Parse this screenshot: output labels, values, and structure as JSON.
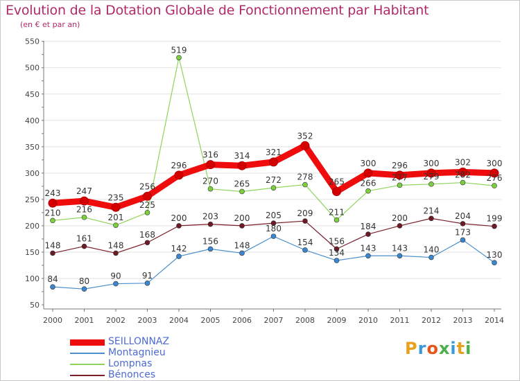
{
  "title": "Evolution de la Dotation Globale de Fonctionnement par Habitant",
  "subtitle": "(en € et par an)",
  "logo": {
    "text": "Proxiti"
  },
  "colors": {
    "title": "#b02a6a",
    "legend_text": "#4d6bd3",
    "axis": "#444444",
    "grid": "#e2e2e2"
  },
  "chart_data": {
    "type": "line",
    "x": [
      "2000",
      "2001",
      "2002",
      "2003",
      "2004",
      "2005",
      "2006",
      "2007",
      "2008",
      "2009",
      "2010",
      "2011",
      "2012",
      "2013",
      "2014"
    ],
    "yticks": [
      50,
      100,
      150,
      200,
      250,
      300,
      350,
      400,
      450,
      500,
      550
    ],
    "ylim": [
      50,
      550
    ],
    "grid": true,
    "legend_position": "bottom-left",
    "series": [
      {
        "name": "Montagnieu",
        "color": "#4a8fcc",
        "marker": "#3a86d0",
        "width": 1.2,
        "values": [
          84,
          80,
          90,
          91,
          142,
          156,
          148,
          180,
          154,
          134,
          143,
          143,
          140,
          173,
          130
        ],
        "labels": [
          "84",
          "80",
          "90",
          "91",
          "142",
          "156",
          "148",
          "180",
          "154",
          "134",
          "143",
          "143",
          "140",
          "173",
          "130"
        ]
      },
      {
        "name": "Bénonces",
        "color": "#7a1e28",
        "marker": "#6e1a26",
        "width": 1.2,
        "values": [
          148,
          161,
          148,
          168,
          200,
          203,
          200,
          205,
          209,
          156,
          184,
          200,
          214,
          204,
          199
        ],
        "labels": [
          "148",
          "161",
          "148",
          "168",
          "200",
          "203",
          "200",
          "205",
          "209",
          "156",
          "184",
          "200",
          "214",
          "204",
          "199"
        ]
      },
      {
        "name": "Lompnas",
        "color": "#8ed45a",
        "marker": "#7ccf3e",
        "width": 1.2,
        "values": [
          210,
          216,
          201,
          225,
          519,
          270,
          265,
          272,
          278,
          211,
          266,
          277,
          279,
          282,
          276
        ],
        "labels": [
          "210",
          "216",
          "201",
          "225",
          "519",
          "270",
          "265",
          "272",
          "278",
          "211",
          "266",
          "277",
          "279",
          "282",
          "276"
        ]
      },
      {
        "name": "SEILLONNAZ",
        "color": "#ee0c0c",
        "marker": "#d40000",
        "width": 9,
        "values": [
          243,
          247,
          235,
          256,
          296,
          316,
          314,
          321,
          352,
          265,
          300,
          296,
          300,
          302,
          300
        ],
        "labels": [
          "243",
          "247",
          "235",
          "256",
          "296",
          "316",
          "314",
          "321",
          "352",
          "265",
          "300",
          "296",
          "300",
          "302",
          "300"
        ]
      }
    ],
    "legend_order": [
      "SEILLONNAZ",
      "Montagnieu",
      "Lompnas",
      "Bénonces"
    ]
  }
}
